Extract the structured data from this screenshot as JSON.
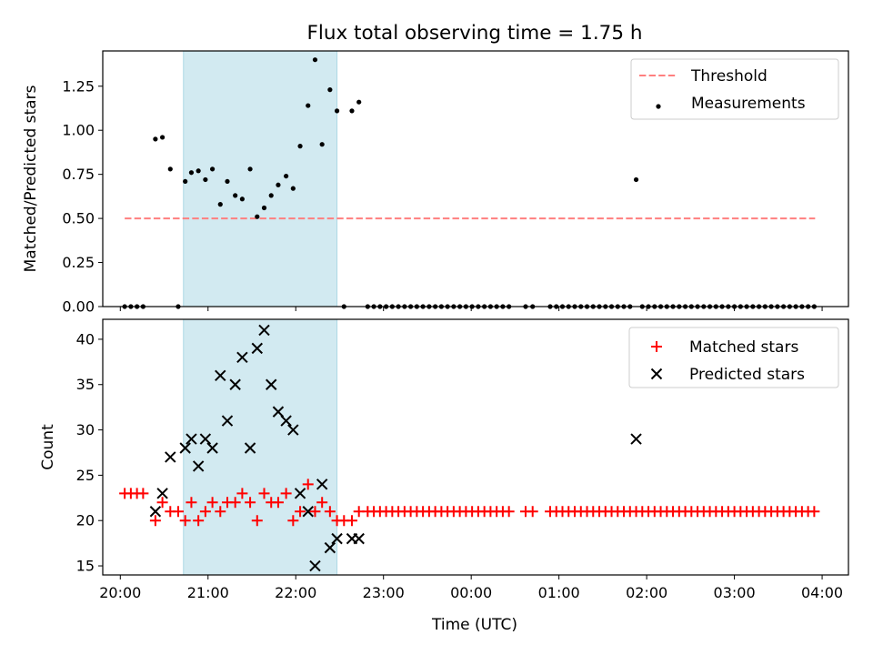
{
  "title": "Flux total observing time = 1.75 h",
  "xlabel": "Time (UTC)",
  "x_ticks": [
    "20:00",
    "21:00",
    "22:00",
    "23:00",
    "00:00",
    "01:00",
    "02:00",
    "03:00",
    "04:00"
  ],
  "colors": {
    "threshold": "#ff7f7f",
    "shade": "#add8e6",
    "matched": "#ff0000",
    "predicted": "#000000",
    "measurement": "#000000"
  },
  "chart_data": [
    {
      "type": "scatter",
      "ylabel": "Matched/Predicted stars",
      "x_unit": "hours after 20:00 UTC",
      "xlim": [
        -0.2,
        8.3
      ],
      "ylim": [
        0,
        1.45
      ],
      "y_ticks": [
        "0.00",
        "0.25",
        "0.50",
        "0.75",
        "1.00",
        "1.25"
      ],
      "shaded_span": [
        0.72,
        2.47
      ],
      "legend_position": "upper right",
      "legend": [
        "Threshold",
        "Measurements"
      ],
      "threshold": {
        "name": "Threshold",
        "y": 0.5,
        "x_range": [
          0.05,
          7.92
        ],
        "style": "dashed"
      },
      "series": [
        {
          "name": "Measurements",
          "points": [
            [
              0.05,
              0
            ],
            [
              0.12,
              0
            ],
            [
              0.19,
              0
            ],
            [
              0.26,
              0
            ],
            [
              0.4,
              0.95
            ],
            [
              0.48,
              0.96
            ],
            [
              0.57,
              0.78
            ],
            [
              0.66,
              0
            ],
            [
              0.74,
              0.71
            ],
            [
              0.81,
              0.76
            ],
            [
              0.89,
              0.77
            ],
            [
              0.97,
              0.72
            ],
            [
              1.05,
              0.78
            ],
            [
              1.14,
              0.58
            ],
            [
              1.22,
              0.71
            ],
            [
              1.31,
              0.63
            ],
            [
              1.39,
              0.61
            ],
            [
              1.48,
              0.78
            ],
            [
              1.56,
              0.51
            ],
            [
              1.64,
              0.56
            ],
            [
              1.72,
              0.63
            ],
            [
              1.8,
              0.69
            ],
            [
              1.89,
              0.74
            ],
            [
              1.97,
              0.67
            ],
            [
              2.05,
              0.91
            ],
            [
              2.14,
              1.14
            ],
            [
              2.22,
              1.4
            ],
            [
              2.3,
              0.92
            ],
            [
              2.39,
              1.23
            ],
            [
              2.47,
              1.11
            ],
            [
              2.55,
              0
            ],
            [
              2.64,
              1.11
            ],
            [
              2.72,
              1.16
            ],
            [
              2.82,
              0
            ],
            [
              2.89,
              0
            ],
            [
              2.96,
              0
            ],
            [
              3.03,
              0
            ],
            [
              3.1,
              0
            ],
            [
              3.17,
              0
            ],
            [
              3.24,
              0
            ],
            [
              3.31,
              0
            ],
            [
              3.38,
              0
            ],
            [
              3.45,
              0
            ],
            [
              3.52,
              0
            ],
            [
              3.59,
              0
            ],
            [
              3.66,
              0
            ],
            [
              3.73,
              0
            ],
            [
              3.8,
              0
            ],
            [
              3.87,
              0
            ],
            [
              3.94,
              0
            ],
            [
              4.01,
              0
            ],
            [
              4.08,
              0
            ],
            [
              4.15,
              0
            ],
            [
              4.22,
              0
            ],
            [
              4.29,
              0
            ],
            [
              4.36,
              0
            ],
            [
              4.43,
              0
            ],
            [
              4.62,
              0
            ],
            [
              4.7,
              0
            ],
            [
              4.9,
              0
            ],
            [
              4.97,
              0
            ],
            [
              5.04,
              0
            ],
            [
              5.11,
              0
            ],
            [
              5.18,
              0
            ],
            [
              5.25,
              0
            ],
            [
              5.32,
              0
            ],
            [
              5.39,
              0
            ],
            [
              5.46,
              0
            ],
            [
              5.53,
              0
            ],
            [
              5.6,
              0
            ],
            [
              5.67,
              0
            ],
            [
              5.74,
              0
            ],
            [
              5.81,
              0
            ],
            [
              5.88,
              0.72
            ],
            [
              5.95,
              0
            ],
            [
              6.02,
              0
            ],
            [
              6.09,
              0
            ],
            [
              6.16,
              0
            ],
            [
              6.23,
              0
            ],
            [
              6.3,
              0
            ],
            [
              6.37,
              0
            ],
            [
              6.44,
              0
            ],
            [
              6.51,
              0
            ],
            [
              6.58,
              0
            ],
            [
              6.65,
              0
            ],
            [
              6.72,
              0
            ],
            [
              6.79,
              0
            ],
            [
              6.86,
              0
            ],
            [
              6.93,
              0
            ],
            [
              7.0,
              0
            ],
            [
              7.07,
              0
            ],
            [
              7.14,
              0
            ],
            [
              7.21,
              0
            ],
            [
              7.28,
              0
            ],
            [
              7.35,
              0
            ],
            [
              7.42,
              0
            ],
            [
              7.49,
              0
            ],
            [
              7.56,
              0
            ],
            [
              7.63,
              0
            ],
            [
              7.7,
              0
            ],
            [
              7.77,
              0
            ],
            [
              7.84,
              0
            ],
            [
              7.91,
              0
            ]
          ]
        }
      ]
    },
    {
      "type": "scatter",
      "ylabel": "Count",
      "x_unit": "hours after 20:00 UTC",
      "xlim": [
        -0.2,
        8.3
      ],
      "ylim": [
        14,
        42.2
      ],
      "y_ticks": [
        "15",
        "20",
        "25",
        "30",
        "35",
        "40"
      ],
      "shaded_span": [
        0.72,
        2.47
      ],
      "legend_position": "upper right",
      "legend": [
        "Matched stars",
        "Predicted stars"
      ],
      "series": [
        {
          "name": "Matched stars",
          "marker": "plus",
          "points": [
            [
              0.05,
              23
            ],
            [
              0.12,
              23
            ],
            [
              0.19,
              23
            ],
            [
              0.26,
              23
            ],
            [
              0.4,
              20
            ],
            [
              0.48,
              22
            ],
            [
              0.57,
              21
            ],
            [
              0.66,
              21
            ],
            [
              0.74,
              20
            ],
            [
              0.81,
              22
            ],
            [
              0.89,
              20
            ],
            [
              0.97,
              21
            ],
            [
              1.05,
              22
            ],
            [
              1.14,
              21
            ],
            [
              1.22,
              22
            ],
            [
              1.31,
              22
            ],
            [
              1.39,
              23
            ],
            [
              1.48,
              22
            ],
            [
              1.56,
              20
            ],
            [
              1.64,
              23
            ],
            [
              1.72,
              22
            ],
            [
              1.8,
              22
            ],
            [
              1.89,
              23
            ],
            [
              1.97,
              20
            ],
            [
              2.05,
              21
            ],
            [
              2.14,
              24
            ],
            [
              2.22,
              21
            ],
            [
              2.3,
              22
            ],
            [
              2.39,
              21
            ],
            [
              2.47,
              20
            ],
            [
              2.55,
              20
            ],
            [
              2.64,
              20
            ],
            [
              2.72,
              21
            ],
            [
              2.82,
              21
            ],
            [
              2.89,
              21
            ],
            [
              2.96,
              21
            ],
            [
              3.03,
              21
            ],
            [
              3.1,
              21
            ],
            [
              3.17,
              21
            ],
            [
              3.24,
              21
            ],
            [
              3.31,
              21
            ],
            [
              3.38,
              21
            ],
            [
              3.45,
              21
            ],
            [
              3.52,
              21
            ],
            [
              3.59,
              21
            ],
            [
              3.66,
              21
            ],
            [
              3.73,
              21
            ],
            [
              3.8,
              21
            ],
            [
              3.87,
              21
            ],
            [
              3.94,
              21
            ],
            [
              4.01,
              21
            ],
            [
              4.08,
              21
            ],
            [
              4.15,
              21
            ],
            [
              4.22,
              21
            ],
            [
              4.29,
              21
            ],
            [
              4.36,
              21
            ],
            [
              4.43,
              21
            ],
            [
              4.62,
              21
            ],
            [
              4.7,
              21
            ],
            [
              4.9,
              21
            ],
            [
              4.97,
              21
            ],
            [
              5.04,
              21
            ],
            [
              5.11,
              21
            ],
            [
              5.18,
              21
            ],
            [
              5.25,
              21
            ],
            [
              5.32,
              21
            ],
            [
              5.39,
              21
            ],
            [
              5.46,
              21
            ],
            [
              5.53,
              21
            ],
            [
              5.6,
              21
            ],
            [
              5.67,
              21
            ],
            [
              5.74,
              21
            ],
            [
              5.81,
              21
            ],
            [
              5.88,
              21
            ],
            [
              5.95,
              21
            ],
            [
              6.02,
              21
            ],
            [
              6.09,
              21
            ],
            [
              6.16,
              21
            ],
            [
              6.23,
              21
            ],
            [
              6.3,
              21
            ],
            [
              6.37,
              21
            ],
            [
              6.44,
              21
            ],
            [
              6.51,
              21
            ],
            [
              6.58,
              21
            ],
            [
              6.65,
              21
            ],
            [
              6.72,
              21
            ],
            [
              6.79,
              21
            ],
            [
              6.86,
              21
            ],
            [
              6.93,
              21
            ],
            [
              7.0,
              21
            ],
            [
              7.07,
              21
            ],
            [
              7.14,
              21
            ],
            [
              7.21,
              21
            ],
            [
              7.28,
              21
            ],
            [
              7.35,
              21
            ],
            [
              7.42,
              21
            ],
            [
              7.49,
              21
            ],
            [
              7.56,
              21
            ],
            [
              7.63,
              21
            ],
            [
              7.7,
              21
            ],
            [
              7.77,
              21
            ],
            [
              7.84,
              21
            ],
            [
              7.91,
              21
            ]
          ]
        },
        {
          "name": "Predicted stars",
          "marker": "x",
          "points": [
            [
              0.4,
              21
            ],
            [
              0.48,
              23
            ],
            [
              0.57,
              27
            ],
            [
              0.74,
              28
            ],
            [
              0.81,
              29
            ],
            [
              0.89,
              26
            ],
            [
              0.97,
              29
            ],
            [
              1.05,
              28
            ],
            [
              1.14,
              36
            ],
            [
              1.22,
              31
            ],
            [
              1.31,
              35
            ],
            [
              1.39,
              38
            ],
            [
              1.48,
              28
            ],
            [
              1.56,
              39
            ],
            [
              1.64,
              41
            ],
            [
              1.72,
              35
            ],
            [
              1.8,
              32
            ],
            [
              1.89,
              31
            ],
            [
              1.97,
              30
            ],
            [
              2.05,
              23
            ],
            [
              2.14,
              21
            ],
            [
              2.22,
              15
            ],
            [
              2.3,
              24
            ],
            [
              2.39,
              17
            ],
            [
              2.47,
              18
            ],
            [
              2.64,
              18
            ],
            [
              2.72,
              18
            ],
            [
              5.88,
              29
            ]
          ]
        }
      ]
    }
  ]
}
